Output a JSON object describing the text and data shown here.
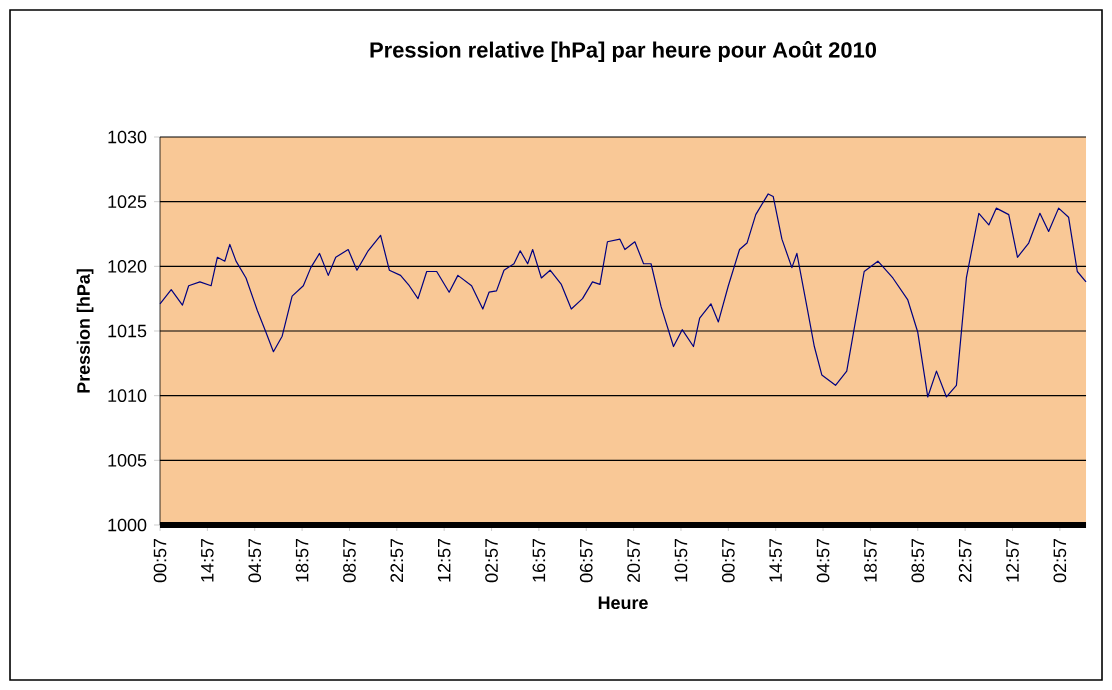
{
  "chart_data": {
    "type": "line",
    "title": "Pression relative [hPa] par heure pour Août 2010",
    "xlabel": "Heure",
    "ylabel": "Pression [hPa]",
    "categories": [
      "00:57",
      null,
      null,
      null,
      null,
      null,
      null,
      null,
      null,
      null,
      null,
      null,
      null,
      null,
      null,
      null,
      null,
      null,
      null,
      null,
      null,
      null,
      null,
      null,
      null,
      null,
      null,
      null,
      null,
      null,
      null,
      null,
      null,
      null,
      null,
      null,
      null,
      null,
      "14:57",
      null,
      null,
      null,
      null,
      null,
      null,
      null,
      null,
      null,
      null,
      null,
      null,
      null,
      null,
      null,
      null,
      null,
      null,
      null,
      null,
      null,
      null,
      null,
      null,
      null,
      null,
      null,
      null,
      null,
      null,
      null,
      null,
      null,
      null,
      null,
      null,
      null,
      "04:57",
      null,
      null,
      null,
      null,
      null,
      null,
      null,
      null,
      null,
      null,
      null,
      null,
      null,
      null,
      null,
      null,
      null,
      null,
      null,
      null,
      null,
      null,
      null,
      null,
      null,
      null,
      null,
      null,
      null,
      null,
      null,
      null,
      null,
      null,
      null,
      null,
      null,
      "18:57",
      null,
      null,
      null,
      null,
      null,
      null,
      null,
      null,
      null,
      null,
      null,
      null,
      null,
      null,
      null,
      null,
      null,
      null,
      null,
      null,
      null,
      null,
      null,
      null,
      null,
      null,
      null,
      null,
      null,
      null,
      null,
      null,
      null,
      null,
      null,
      null,
      null,
      "08:57",
      null,
      null,
      null,
      null,
      null,
      null,
      null,
      null,
      null,
      null,
      null,
      null,
      null,
      null,
      null,
      null,
      null,
      null,
      null,
      null,
      null,
      null,
      null,
      null,
      null,
      null,
      null,
      null,
      null,
      null,
      null,
      null,
      null,
      null,
      null,
      null,
      null,
      "22:57",
      null,
      null,
      null,
      null,
      null,
      null,
      null,
      null,
      null,
      null,
      null,
      null,
      null,
      null,
      null,
      null,
      null,
      null,
      null,
      null,
      null,
      null,
      null,
      null,
      null,
      null,
      null,
      null,
      null,
      null,
      null,
      null,
      null,
      null,
      null,
      null,
      null,
      "12:57",
      null,
      null,
      null,
      null,
      null,
      null,
      null,
      null,
      null,
      null,
      null,
      null,
      null,
      null,
      null,
      null,
      null,
      null,
      null,
      null,
      null,
      null,
      null,
      null,
      null,
      null,
      null,
      null,
      null,
      null,
      null,
      null,
      null,
      null,
      null,
      null,
      null,
      "02:57",
      null,
      null,
      null,
      null,
      null,
      null,
      null,
      null,
      null,
      null,
      null,
      null,
      null,
      null,
      null,
      null,
      null,
      null,
      null,
      null,
      null,
      null,
      null,
      null,
      null,
      null,
      null,
      null,
      null,
      null,
      null,
      null,
      null,
      null,
      null,
      null,
      null,
      "16:57",
      null,
      null,
      null,
      null,
      null,
      null,
      null,
      null,
      null,
      null,
      null,
      null,
      null,
      null,
      null,
      null,
      null,
      null,
      null,
      null,
      null,
      null,
      null,
      null,
      null,
      null,
      null,
      null,
      null,
      null,
      null,
      null,
      null,
      null,
      null,
      null,
      null,
      "06:57",
      null,
      null,
      null,
      null,
      null,
      null,
      null,
      null,
      null,
      null,
      null,
      null,
      null,
      null,
      null,
      null,
      null,
      null,
      null,
      null,
      null,
      null,
      null,
      null,
      null,
      null,
      null,
      null,
      null,
      null,
      null,
      null,
      null,
      null,
      null,
      null,
      null,
      "20:57",
      null,
      null,
      null,
      null,
      null,
      null,
      null,
      null,
      null,
      null,
      null,
      null,
      null,
      null,
      null,
      null,
      null,
      null,
      null,
      null,
      null,
      null,
      null,
      null,
      null,
      null,
      null,
      null,
      null,
      null,
      null,
      null,
      null,
      null,
      null,
      null,
      null,
      "10:57",
      null,
      null,
      null,
      null,
      null,
      null,
      null,
      null,
      null,
      null,
      null,
      null,
      null,
      null,
      null,
      null,
      null,
      null,
      null,
      null,
      null,
      null,
      null,
      null,
      null,
      null,
      null,
      null,
      null,
      null,
      null,
      null,
      null,
      null,
      null,
      null,
      null,
      "00:57",
      null,
      null,
      null,
      null,
      null,
      null,
      null,
      null,
      null,
      null,
      null,
      null,
      null,
      null,
      null,
      null,
      null,
      null,
      null,
      null,
      null,
      null,
      null,
      null,
      null,
      null,
      null,
      null,
      null,
      null,
      null,
      null,
      null,
      null,
      null,
      null,
      null,
      "14:57",
      null,
      null,
      null,
      null,
      null,
      null,
      null,
      null,
      null,
      null,
      null,
      null,
      null,
      null,
      null,
      null,
      null,
      null,
      null,
      null,
      null,
      null,
      null,
      null,
      null,
      null,
      null,
      null,
      null,
      null,
      null,
      null,
      null,
      null,
      null,
      null,
      null,
      "04:57",
      null,
      null,
      null,
      null,
      null,
      null,
      null,
      null,
      null,
      null,
      null,
      null,
      null,
      null,
      null,
      null,
      null,
      null,
      null,
      null,
      null,
      null,
      null,
      null,
      null,
      null,
      null,
      null,
      null,
      null,
      null,
      null,
      null,
      null,
      null,
      null,
      null,
      "18:57",
      null,
      null,
      null,
      null,
      null,
      null,
      null,
      null,
      null,
      null,
      null,
      null,
      null,
      null,
      null,
      null,
      null,
      null,
      null,
      null,
      null,
      null,
      null,
      null,
      null,
      null,
      null,
      null,
      null,
      null,
      null,
      null,
      null,
      null,
      null,
      null,
      null,
      "08:57",
      null,
      null,
      null,
      null,
      null,
      null,
      null,
      null,
      null,
      null,
      null,
      null,
      null,
      null,
      null,
      null,
      null,
      null,
      null,
      null,
      null,
      null,
      null,
      null,
      null,
      null,
      null,
      null,
      null,
      null,
      null,
      null,
      null,
      null,
      null,
      null,
      null,
      "22:57",
      null,
      null,
      null,
      null,
      null,
      null,
      null,
      null,
      null,
      null,
      null,
      null,
      null,
      null,
      null,
      null,
      null,
      null,
      null,
      null,
      null,
      null,
      null,
      null,
      null,
      null,
      null,
      null,
      null,
      null,
      null,
      null,
      null,
      null,
      null,
      null,
      null,
      "12:57",
      null,
      null,
      null,
      null,
      null,
      null,
      null,
      null,
      null,
      null,
      null,
      null,
      null,
      null,
      null,
      null,
      null,
      null,
      null,
      null,
      null,
      null,
      null,
      null,
      null,
      null,
      null,
      null,
      null,
      null,
      null,
      null,
      null,
      null,
      null,
      null,
      null,
      "02:57",
      null,
      null,
      null,
      null,
      null,
      null,
      null,
      null,
      null,
      null,
      null,
      null,
      null,
      null,
      null,
      null,
      null,
      null,
      null,
      null,
      null
    ],
    "series": [
      {
        "color": "#000080",
        "values": [
          1017.1,
          null,
          null,
          null,
          null,
          null,
          null,
          null,
          null,
          1018.2,
          null,
          null,
          null,
          null,
          null,
          null,
          null,
          null,
          1017.0,
          null,
          null,
          null,
          null,
          1018.5,
          null,
          null,
          null,
          null,
          null,
          null,
          null,
          null,
          1018.8,
          null,
          null,
          null,
          null,
          null,
          null,
          null,
          null,
          1018.5,
          null,
          null,
          null,
          null,
          1020.7,
          null,
          null,
          null,
          null,
          null,
          1020.4,
          null,
          null,
          null,
          1021.7,
          null,
          null,
          null,
          null,
          1020.4,
          null,
          null,
          null,
          null,
          null,
          null,
          null,
          1019.1,
          null,
          null,
          null,
          null,
          null,
          null,
          null,
          null,
          1016.6,
          null,
          null,
          null,
          null,
          null,
          null,
          1014.9,
          null,
          null,
          null,
          null,
          null,
          1013.4,
          null,
          null,
          null,
          null,
          null,
          null,
          1014.6,
          null,
          null,
          null,
          null,
          null,
          null,
          null,
          1017.7,
          null,
          null,
          null,
          null,
          null,
          null,
          null,
          null,
          1018.5,
          null,
          null,
          null,
          null,
          null,
          1019.9,
          null,
          null,
          null,
          null,
          null,
          null,
          1021.0,
          null,
          null,
          null,
          null,
          null,
          null,
          1019.3,
          null,
          null,
          null,
          null,
          null,
          1020.7,
          null,
          null,
          null,
          null,
          null,
          null,
          null,
          null,
          null,
          1021.3,
          null,
          null,
          null,
          null,
          null,
          null,
          1019.7,
          null,
          null,
          null,
          null,
          null,
          null,
          null,
          null,
          1021.2,
          null,
          null,
          null,
          null,
          null,
          null,
          null,
          null,
          null,
          1022.4,
          null,
          null,
          null,
          null,
          null,
          null,
          1019.7,
          null,
          null,
          null,
          null,
          null,
          null,
          null,
          null,
          1019.3,
          null,
          null,
          null,
          null,
          null,
          null,
          1018.5,
          null,
          null,
          null,
          null,
          null,
          null,
          1017.5,
          null,
          null,
          null,
          null,
          null,
          null,
          1019.6,
          null,
          null,
          null,
          null,
          null,
          null,
          null,
          1019.6,
          null,
          null,
          null,
          null,
          null,
          null,
          null,
          null,
          null,
          1018.0,
          null,
          null,
          null,
          null,
          null,
          null,
          1019.3,
          null,
          null,
          null,
          null,
          null,
          null,
          null,
          null,
          null,
          null,
          1018.5,
          null,
          null,
          null,
          null,
          null,
          null,
          null,
          null,
          1016.7,
          null,
          null,
          null,
          null,
          1018.0,
          null,
          null,
          null,
          null,
          null,
          1018.1,
          null,
          null,
          null,
          null,
          null,
          1019.7,
          null,
          null,
          null,
          null,
          null,
          null,
          null,
          1020.2,
          null,
          null,
          null,
          null,
          1021.2,
          null,
          null,
          null,
          null,
          null,
          1020.2,
          null,
          null,
          null,
          1021.3,
          null,
          null,
          null,
          null,
          null,
          null,
          1019.1,
          null,
          null,
          null,
          null,
          null,
          null,
          1019.7,
          null,
          null,
          null,
          null,
          null,
          null,
          null,
          null,
          1018.6,
          null,
          null,
          null,
          null,
          null,
          null,
          null,
          1016.7,
          null,
          null,
          null,
          null,
          null,
          null,
          null,
          null,
          1017.5,
          null,
          null,
          null,
          null,
          null,
          null,
          null,
          1018.8,
          null,
          null,
          null,
          null,
          null,
          1018.6,
          null,
          null,
          null,
          null,
          null,
          1021.9,
          null,
          null,
          null,
          null,
          null,
          null,
          null,
          null,
          null,
          1022.1,
          null,
          null,
          null,
          1021.3,
          null,
          null,
          null,
          null,
          null,
          null,
          null,
          1021.9,
          null,
          null,
          null,
          null,
          null,
          null,
          1020.2,
          null,
          null,
          null,
          null,
          null,
          1020.2,
          null,
          null,
          null,
          null,
          null,
          null,
          null,
          1016.9,
          null,
          null,
          null,
          null,
          null,
          null,
          null,
          null,
          null,
          1013.8,
          null,
          null,
          null,
          null,
          null,
          null,
          1015.1,
          null,
          null,
          null,
          null,
          null,
          null,
          null,
          null,
          1013.8,
          null,
          null,
          null,
          null,
          1016.0,
          null,
          null,
          null,
          null,
          null,
          null,
          null,
          null,
          1017.1,
          null,
          null,
          null,
          null,
          null,
          1015.7,
          null,
          null,
          null,
          null,
          null,
          null,
          null,
          1018.5,
          null,
          null,
          null,
          null,
          null,
          null,
          null,
          null,
          1021.3,
          null,
          null,
          null,
          null,
          null,
          1021.8,
          null,
          null,
          null,
          null,
          null,
          null,
          1024.0,
          null,
          null,
          null,
          null,
          null,
          null,
          null,
          null,
          null,
          1025.6,
          null,
          null,
          null,
          1025.4,
          null,
          null,
          null,
          null,
          null,
          null,
          1022.1,
          null,
          null,
          null,
          null,
          null,
          null,
          null,
          1019.9,
          null,
          null,
          null,
          1021.0,
          null,
          null,
          null,
          null,
          null,
          null,
          null,
          1016.9,
          null,
          null,
          null,
          null,
          null,
          1013.8,
          null,
          null,
          null,
          null,
          null,
          1011.6,
          null,
          null,
          null,
          null,
          null,
          null,
          null,
          null,
          null,
          null,
          1010.8,
          null,
          null,
          null,
          null,
          null,
          null,
          null,
          null,
          1011.9,
          null,
          null,
          null,
          null,
          null,
          1015.2,
          null,
          null,
          null,
          null,
          null,
          null,
          null,
          1019.6,
          null,
          null,
          null,
          null,
          null,
          null,
          null,
          null,
          null,
          null,
          1020.4,
          null,
          null,
          null,
          null,
          null,
          null,
          null,
          null,
          null,
          null,
          null,
          1019.1,
          null,
          null,
          null,
          null,
          null,
          null,
          null,
          null,
          null,
          null,
          null,
          1017.4,
          null,
          null,
          null,
          null,
          null,
          null,
          null,
          1014.9,
          null,
          null,
          null,
          null,
          null,
          null,
          null,
          1009.9,
          null,
          null,
          null,
          null,
          null,
          null,
          1011.9,
          null,
          null,
          null,
          null,
          null,
          null,
          null,
          1009.9,
          null,
          null,
          null,
          null,
          null,
          null,
          null,
          1010.8,
          null,
          null,
          null,
          null,
          null,
          null,
          null,
          1019.1,
          null,
          null,
          null,
          null,
          null,
          null,
          null,
          null,
          null,
          1024.1,
          null,
          null,
          null,
          null,
          null,
          null,
          null,
          1023.2,
          null,
          null,
          null,
          null,
          null,
          1024.5,
          null,
          null,
          null,
          null,
          null,
          null,
          null,
          null,
          null,
          1024.0,
          null,
          null,
          null,
          null,
          null,
          null,
          1020.7,
          null,
          null,
          null,
          null,
          null,
          null,
          null,
          null,
          1021.8,
          null,
          null,
          null,
          null,
          null,
          null,
          null,
          null,
          1024.1,
          null,
          null,
          null,
          null,
          null,
          null,
          1022.7,
          null,
          null,
          null,
          null,
          null,
          null,
          null,
          1024.5,
          null,
          null,
          null,
          null,
          null,
          null,
          null,
          1023.8,
          null,
          null,
          null,
          null,
          null,
          null,
          1019.6,
          null,
          null,
          null,
          null,
          null,
          null,
          1018.8
        ]
      }
    ],
    "ylim": [
      1000,
      1030
    ],
    "yticks": [
      1000,
      1005,
      1010,
      1015,
      1020,
      1025,
      1030
    ],
    "grid": "y",
    "marker": "none",
    "line_style": "solid"
  }
}
